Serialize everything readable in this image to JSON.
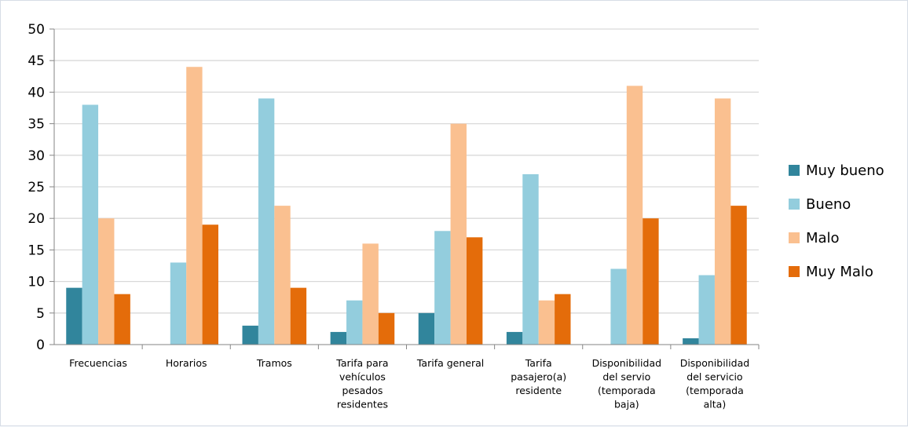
{
  "chart_data": {
    "type": "bar",
    "title": "",
    "xlabel": "",
    "ylabel": "",
    "ylim": [
      0,
      50
    ],
    "ytick_step": 5,
    "grid": true,
    "legend_position": "right",
    "categories": [
      [
        "Frecuencias"
      ],
      [
        "Horarios"
      ],
      [
        "Tramos"
      ],
      [
        "Tarifa para",
        "vehículos",
        "pesados",
        "residentes"
      ],
      [
        "Tarifa general"
      ],
      [
        "Tarifa",
        "pasajero(a)",
        "residente"
      ],
      [
        "Disponibilidad",
        "del servio",
        "(temporada",
        "baja)"
      ],
      [
        "Disponibilidad",
        "del servicio",
        "(temporada",
        "alta)"
      ]
    ],
    "series": [
      {
        "name": "Muy bueno",
        "color": "#31859c",
        "values": [
          9,
          0,
          3,
          2,
          5,
          2,
          0,
          1
        ]
      },
      {
        "name": "Bueno",
        "color": "#93cddd",
        "values": [
          38,
          13,
          39,
          7,
          18,
          27,
          12,
          11
        ]
      },
      {
        "name": "Malo",
        "color": "#fac090",
        "values": [
          20,
          44,
          22,
          16,
          35,
          7,
          41,
          39
        ]
      },
      {
        "name": "Muy Malo",
        "color": "#e46c0a",
        "values": [
          8,
          19,
          9,
          5,
          17,
          8,
          20,
          22
        ]
      }
    ]
  }
}
